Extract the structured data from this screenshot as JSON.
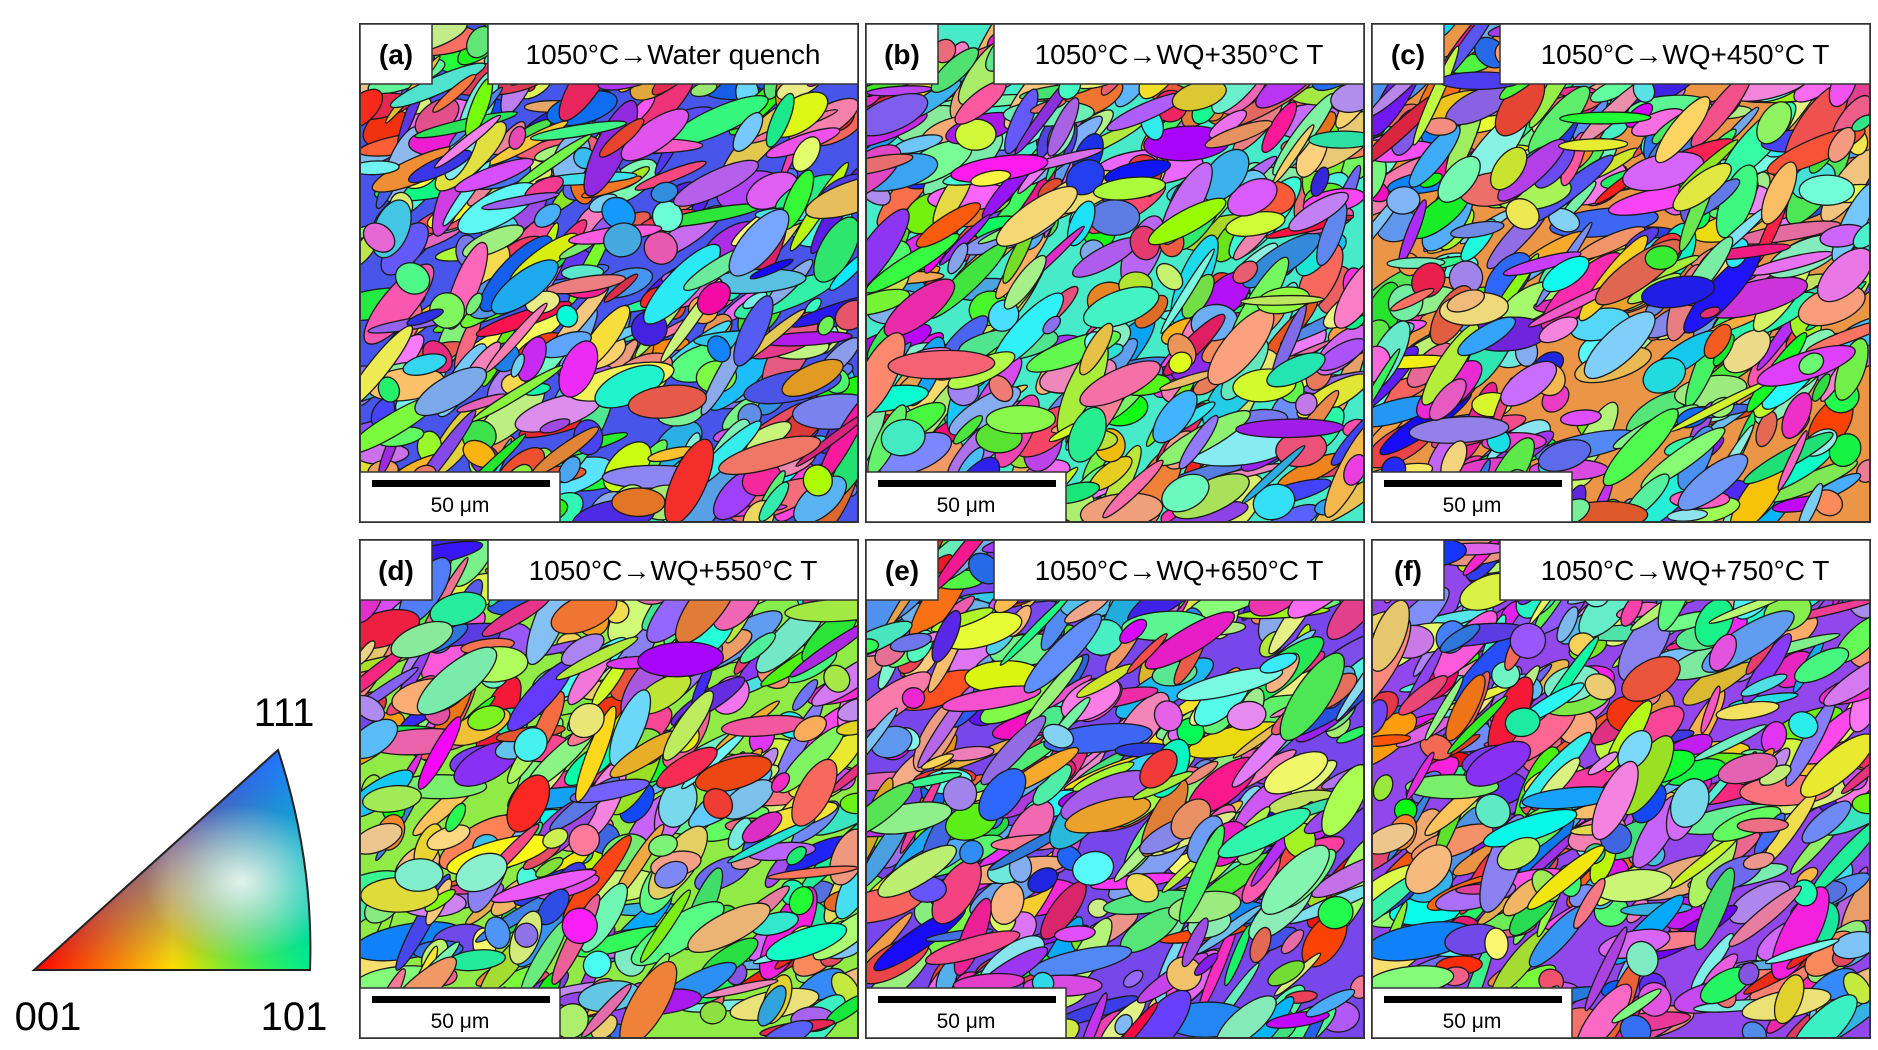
{
  "panels": [
    {
      "label": "(a)",
      "title": "1050°C→Water quench",
      "scale_bar": "50 μm"
    },
    {
      "label": "(b)",
      "title": "1050°C→WQ+350°C T",
      "scale_bar": "50 μm"
    },
    {
      "label": "(c)",
      "title": "1050°C→WQ+450°C T",
      "scale_bar": "50 μm"
    },
    {
      "label": "(d)",
      "title": "1050°C→WQ+550°C T",
      "scale_bar": "50 μm"
    },
    {
      "label": "(e)",
      "title": "1050°C→WQ+650°C T",
      "scale_bar": "50 μm"
    },
    {
      "label": "(f)",
      "title": "1050°C→WQ+750°C T",
      "scale_bar": "50 μm"
    }
  ],
  "legend": {
    "labels": [
      "001",
      "101",
      "111"
    ]
  }
}
